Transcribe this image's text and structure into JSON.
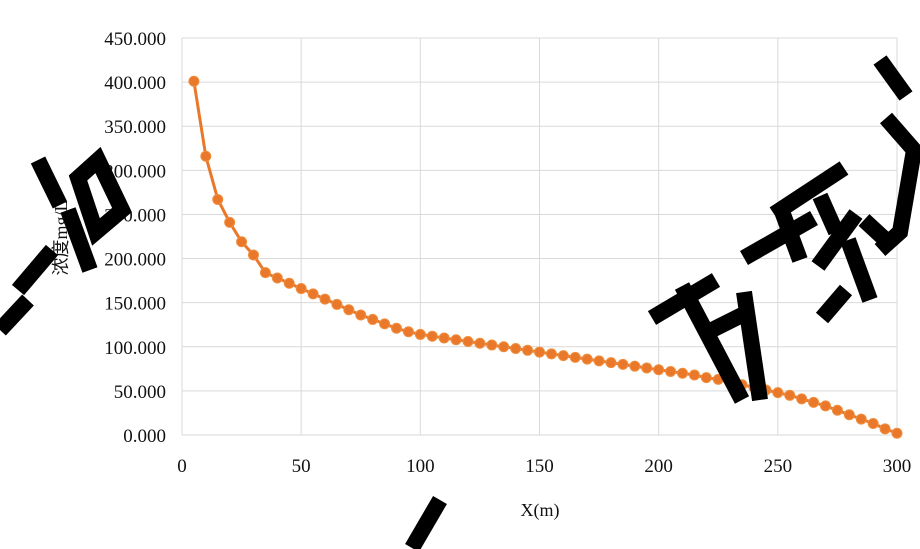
{
  "chart_data": {
    "type": "line",
    "title": "",
    "xlabel": "X(m)",
    "ylabel": "浓度mg/L",
    "xlim": [
      0,
      300
    ],
    "ylim": [
      0,
      450
    ],
    "x_ticks": [
      0,
      50,
      100,
      150,
      200,
      250,
      300
    ],
    "x_tick_labels": [
      "0",
      "50",
      "100",
      "150",
      "200",
      "250",
      "300"
    ],
    "y_ticks": [
      0,
      50,
      100,
      150,
      200,
      250,
      300,
      350,
      400,
      450
    ],
    "y_tick_labels": [
      "0.000",
      "50.000",
      "100.000",
      "150.000",
      "200.000",
      "250.000",
      "300.000",
      "350.000",
      "400.000",
      "450.000"
    ],
    "grid": true,
    "legend": "none",
    "series_color": "#e9782a",
    "series": [
      {
        "x": [
          5,
          10,
          15,
          20,
          25,
          30,
          35,
          40,
          45,
          50,
          55,
          60,
          65,
          70,
          75,
          80,
          85,
          90,
          95,
          100,
          105,
          110,
          115,
          120,
          125,
          130,
          135,
          140,
          145,
          150,
          155,
          160,
          165,
          170,
          175,
          180,
          185,
          190,
          195,
          200,
          205,
          210,
          215,
          220,
          225,
          230,
          235,
          240,
          245,
          250,
          255,
          260,
          265,
          270,
          275,
          280,
          285,
          290,
          295,
          300
        ],
        "y": [
          401,
          316,
          267,
          241,
          219,
          204,
          184,
          178,
          172,
          166,
          160,
          154,
          148,
          142,
          136,
          131,
          126,
          121,
          117,
          114,
          112,
          110,
          108,
          106,
          104,
          102,
          100,
          98,
          96,
          94,
          92,
          90,
          88,
          86,
          84,
          82,
          80,
          78,
          76,
          74,
          72,
          70,
          68,
          65,
          63,
          60,
          57,
          54,
          51,
          48,
          45,
          41,
          37,
          33,
          28,
          23,
          18,
          13,
          7,
          2
        ]
      }
    ]
  }
}
